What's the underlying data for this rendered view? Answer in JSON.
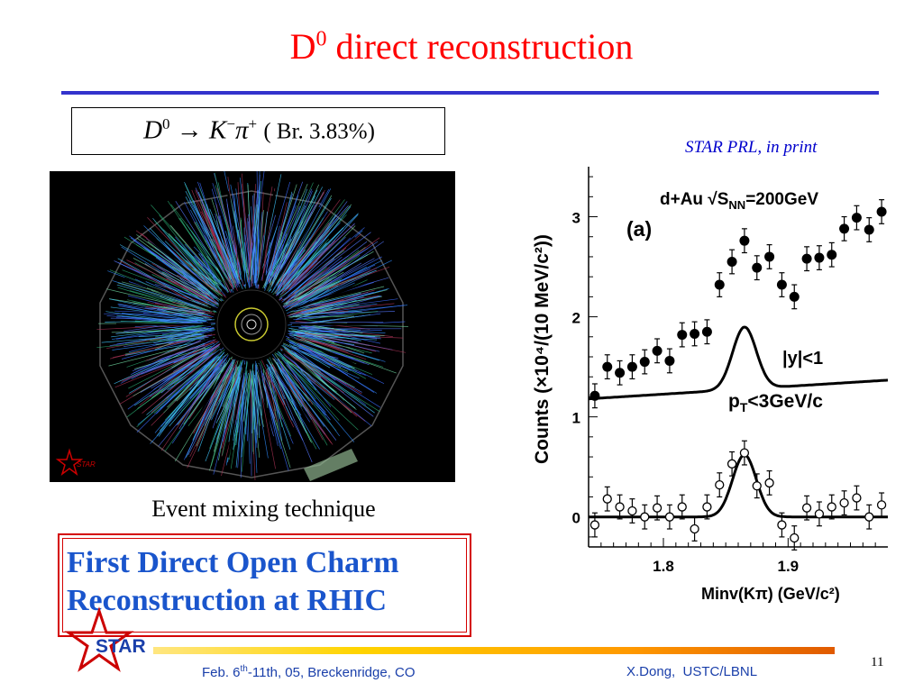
{
  "slide": {
    "title_main": "D",
    "title_sup": "0",
    "title_rest": " direct reconstruction",
    "formula": {
      "d": "D",
      "d_sup": "0",
      "arrow": "→",
      "k": "K",
      "k_sup": "−",
      "pi": "π",
      "pi_sup": "+",
      "branching": "( Br. 3.83%)"
    },
    "citation": "STAR PRL, in print",
    "event_caption": "Event mixing technique",
    "event_logo_text": "STAR",
    "highlight_line1": "First Direct Open Charm",
    "highlight_line2": "Reconstruction at RHIC",
    "logo_text": "STAR",
    "footer_left_pre": "Feb. 6",
    "footer_left_sup": "th",
    "footer_left_post": "-11th, 05, Breckenridge, CO",
    "footer_right": "X.Dong,  USTC/LBNL",
    "slide_number": "11",
    "colors": {
      "title": "#ff0000",
      "rule": "#3333cc",
      "highlight_text": "#1a55cc",
      "highlight_border": "#d40000",
      "footer_text": "#1a3faa"
    }
  },
  "chart_data": {
    "type": "scatter",
    "system_label": "d+Au √S",
    "system_sub": "NN",
    "system_energy": "=200GeV",
    "panel_label": "(a)",
    "cut_rapidity": "|y|<1",
    "cut_pt_pre": "p",
    "cut_pt_sub": "T",
    "cut_pt_post": "<3GeV/c",
    "ylabel": "Counts (×10⁴/(10 MeV/c²))",
    "xlabel": "Minv(Kπ) (GeV/c²)",
    "xlim": [
      1.74,
      1.98
    ],
    "ylim": [
      -0.3,
      3.5
    ],
    "xticks": [
      1.8,
      1.9
    ],
    "xtick_labels": [
      "1.8",
      "1.9"
    ],
    "yticks": [
      0,
      1,
      2,
      3
    ],
    "ytick_labels": [
      "0",
      "1",
      "2",
      "3"
    ],
    "series": [
      {
        "marker": "filled",
        "x": [
          1.745,
          1.755,
          1.765,
          1.775,
          1.785,
          1.795,
          1.805,
          1.815,
          1.825,
          1.835,
          1.845,
          1.855,
          1.865,
          1.875,
          1.885,
          1.895,
          1.905,
          1.915,
          1.925,
          1.935,
          1.945,
          1.955,
          1.965,
          1.975
        ],
        "y": [
          1.21,
          1.5,
          1.44,
          1.5,
          1.55,
          1.66,
          1.56,
          1.82,
          1.83,
          1.85,
          2.32,
          2.55,
          2.76,
          2.49,
          2.6,
          2.32,
          2.2,
          2.58,
          2.59,
          2.62,
          2.88,
          2.99,
          2.87,
          3.05
        ],
        "err": [
          0.12,
          0.12,
          0.12,
          0.12,
          0.12,
          0.12,
          0.12,
          0.12,
          0.12,
          0.12,
          0.12,
          0.12,
          0.12,
          0.12,
          0.12,
          0.12,
          0.12,
          0.12,
          0.12,
          0.12,
          0.12,
          0.12,
          0.12,
          0.12
        ]
      },
      {
        "marker": "open",
        "x": [
          1.745,
          1.755,
          1.765,
          1.775,
          1.785,
          1.795,
          1.805,
          1.815,
          1.825,
          1.835,
          1.845,
          1.855,
          1.865,
          1.875,
          1.885,
          1.895,
          1.905,
          1.915,
          1.925,
          1.935,
          1.945,
          1.955,
          1.965,
          1.975
        ],
        "y": [
          -0.08,
          0.18,
          0.1,
          0.06,
          0.0,
          0.09,
          0.0,
          0.1,
          -0.12,
          0.1,
          0.32,
          0.53,
          0.64,
          0.31,
          0.34,
          -0.08,
          -0.21,
          0.09,
          0.03,
          0.1,
          0.14,
          0.19,
          0.0,
          0.12
        ],
        "err": [
          0.12,
          0.12,
          0.12,
          0.12,
          0.12,
          0.12,
          0.12,
          0.12,
          0.12,
          0.12,
          0.12,
          0.12,
          0.12,
          0.12,
          0.12,
          0.12,
          0.12,
          0.12,
          0.12,
          0.12,
          0.12,
          0.12,
          0.12,
          0.12
        ]
      }
    ],
    "fits": [
      {
        "kind": "linear+gauss",
        "a": 1.18,
        "b": 0.0779,
        "x0": 1.74,
        "amp": 0.62,
        "mu": 1.865,
        "sigma": 0.0095
      },
      {
        "kind": "gauss",
        "a": 0.0,
        "b": 0.0,
        "x0": 1.74,
        "amp": 0.62,
        "mu": 1.865,
        "sigma": 0.0095
      }
    ]
  }
}
